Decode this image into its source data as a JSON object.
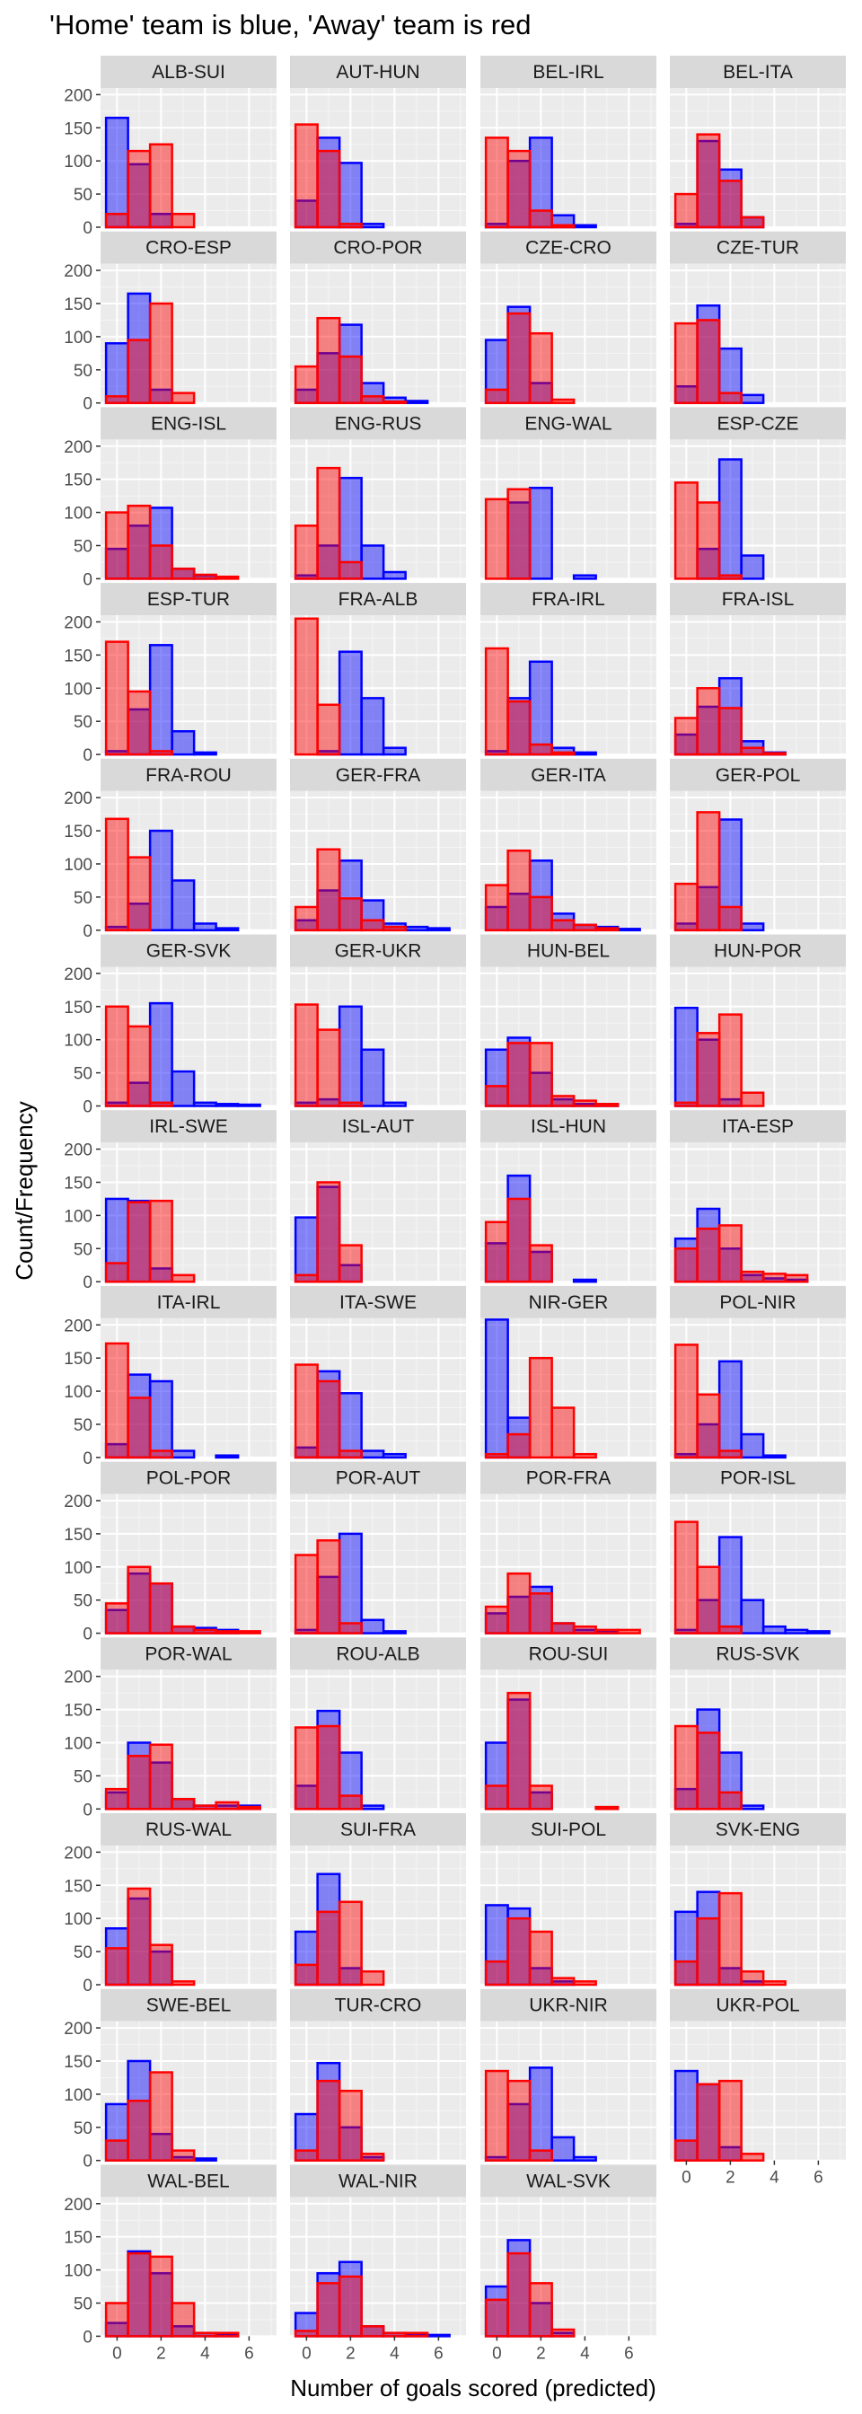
{
  "chart_data": {
    "type": "bar",
    "subtype": "faceted-overlapping-histogram",
    "title": "'Home' team is blue, 'Away' team is red",
    "xlabel": "Number of goals scored (predicted)",
    "ylabel": "Count/Frequency",
    "xlim": [
      -0.75,
      7.25
    ],
    "ylim": [
      0,
      210
    ],
    "x_ticks": [
      0,
      2,
      4,
      6
    ],
    "y_ticks": [
      0,
      50,
      100,
      150,
      200
    ],
    "bin_centers": [
      0,
      1,
      2,
      3,
      4,
      5,
      6
    ],
    "grid": true,
    "legend": "none",
    "colors": {
      "home_fill": "#8c8cf2",
      "home_stroke": "#0000ff",
      "away_fill": "#f28c8c",
      "away_stroke": "#ff0000",
      "overlap": "#9966cc",
      "panel": "#ebebeb",
      "strip": "#d9d9d9"
    },
    "series": [
      {
        "name": "Home",
        "color": "#0000ff"
      },
      {
        "name": "Away",
        "color": "#ff0000"
      }
    ],
    "facets": [
      {
        "label": "ALB-SUI",
        "home": [
          165,
          95,
          20,
          0,
          0,
          0,
          0
        ],
        "away": [
          20,
          115,
          125,
          20,
          0,
          0,
          0
        ]
      },
      {
        "label": "AUT-HUN",
        "home": [
          40,
          135,
          97,
          5,
          0,
          0,
          0
        ],
        "away": [
          155,
          115,
          5,
          0,
          0,
          0,
          0
        ]
      },
      {
        "label": "BEL-IRL",
        "home": [
          5,
          100,
          135,
          18,
          3,
          0,
          0
        ],
        "away": [
          135,
          115,
          25,
          3,
          0,
          0,
          0
        ]
      },
      {
        "label": "BEL-ITA",
        "home": [
          5,
          130,
          87,
          15,
          0,
          0,
          0
        ],
        "away": [
          50,
          140,
          70,
          15,
          0,
          0,
          0
        ]
      },
      {
        "label": "CRO-ESP",
        "home": [
          90,
          165,
          20,
          0,
          0,
          0,
          0
        ],
        "away": [
          10,
          95,
          150,
          15,
          0,
          0,
          0
        ]
      },
      {
        "label": "CRO-POR",
        "home": [
          20,
          75,
          118,
          30,
          8,
          3,
          0
        ],
        "away": [
          55,
          128,
          70,
          10,
          2,
          0,
          0
        ]
      },
      {
        "label": "CZE-CRO",
        "home": [
          95,
          145,
          30,
          0,
          0,
          0,
          0
        ],
        "away": [
          20,
          135,
          105,
          5,
          0,
          0,
          0
        ]
      },
      {
        "label": "CZE-TUR",
        "home": [
          25,
          147,
          82,
          12,
          0,
          0,
          0
        ],
        "away": [
          120,
          125,
          15,
          0,
          0,
          0,
          0
        ]
      },
      {
        "label": "ENG-ISL",
        "home": [
          45,
          80,
          107,
          15,
          5,
          0,
          0
        ],
        "away": [
          100,
          110,
          50,
          15,
          6,
          3,
          0
        ]
      },
      {
        "label": "ENG-RUS",
        "home": [
          5,
          50,
          152,
          50,
          10,
          0,
          0
        ],
        "away": [
          80,
          167,
          25,
          0,
          0,
          0,
          0
        ]
      },
      {
        "label": "ENG-WAL",
        "home": [
          0,
          115,
          137,
          0,
          5,
          0,
          0
        ],
        "away": [
          120,
          135,
          0,
          0,
          0,
          0,
          0
        ]
      },
      {
        "label": "ESP-CZE",
        "home": [
          0,
          45,
          180,
          35,
          0,
          0,
          0
        ],
        "away": [
          145,
          115,
          5,
          0,
          0,
          0,
          0
        ]
      },
      {
        "label": "ESP-TUR",
        "home": [
          5,
          68,
          165,
          35,
          3,
          0,
          0
        ],
        "away": [
          170,
          95,
          5,
          0,
          0,
          0,
          0
        ]
      },
      {
        "label": "FRA-ALB",
        "home": [
          0,
          5,
          155,
          85,
          10,
          0,
          0
        ],
        "away": [
          205,
          75,
          0,
          0,
          0,
          0,
          0
        ]
      },
      {
        "label": "FRA-IRL",
        "home": [
          5,
          85,
          140,
          10,
          3,
          0,
          0
        ],
        "away": [
          160,
          80,
          15,
          3,
          0,
          0,
          0
        ]
      },
      {
        "label": "FRA-ISL",
        "home": [
          30,
          72,
          115,
          20,
          3,
          0,
          0
        ],
        "away": [
          55,
          100,
          70,
          10,
          2,
          0,
          0
        ]
      },
      {
        "label": "FRA-ROU",
        "home": [
          5,
          40,
          150,
          75,
          10,
          3,
          0
        ],
        "away": [
          168,
          110,
          0,
          0,
          0,
          0,
          0
        ]
      },
      {
        "label": "GER-FRA",
        "home": [
          15,
          60,
          105,
          45,
          10,
          5,
          3
        ],
        "away": [
          35,
          122,
          48,
          15,
          5,
          0,
          0
        ]
      },
      {
        "label": "GER-ITA",
        "home": [
          35,
          55,
          105,
          25,
          8,
          5,
          2
        ],
        "away": [
          68,
          120,
          50,
          15,
          8,
          3,
          0
        ]
      },
      {
        "label": "GER-POL",
        "home": [
          10,
          65,
          167,
          10,
          0,
          0,
          0
        ],
        "away": [
          70,
          178,
          35,
          0,
          0,
          0,
          0
        ]
      },
      {
        "label": "GER-SVK",
        "home": [
          5,
          35,
          155,
          52,
          5,
          3,
          2
        ],
        "away": [
          150,
          120,
          5,
          0,
          0,
          0,
          0
        ]
      },
      {
        "label": "GER-UKR",
        "home": [
          5,
          10,
          150,
          85,
          5,
          0,
          0
        ],
        "away": [
          153,
          115,
          5,
          0,
          0,
          0,
          0
        ]
      },
      {
        "label": "HUN-BEL",
        "home": [
          85,
          103,
          50,
          10,
          3,
          3,
          0
        ],
        "away": [
          30,
          95,
          95,
          15,
          8,
          3,
          0
        ]
      },
      {
        "label": "HUN-POR",
        "home": [
          148,
          100,
          10,
          0,
          0,
          0,
          0
        ],
        "away": [
          5,
          110,
          138,
          20,
          0,
          0,
          0
        ]
      },
      {
        "label": "IRL-SWE",
        "home": [
          125,
          122,
          20,
          0,
          0,
          0,
          0
        ],
        "away": [
          28,
          120,
          122,
          10,
          0,
          0,
          0
        ]
      },
      {
        "label": "ISL-AUT",
        "home": [
          97,
          143,
          25,
          0,
          0,
          0,
          0
        ],
        "away": [
          10,
          150,
          55,
          0,
          0,
          0,
          0
        ]
      },
      {
        "label": "ISL-HUN",
        "home": [
          58,
          160,
          45,
          0,
          3,
          0,
          0
        ],
        "away": [
          90,
          125,
          55,
          0,
          0,
          0,
          0
        ]
      },
      {
        "label": "ITA-ESP",
        "home": [
          65,
          110,
          50,
          10,
          5,
          3,
          0
        ],
        "away": [
          50,
          80,
          85,
          15,
          12,
          10,
          0
        ]
      },
      {
        "label": "ITA-IRL",
        "home": [
          20,
          125,
          115,
          10,
          0,
          3,
          0
        ],
        "away": [
          172,
          90,
          10,
          0,
          0,
          0,
          0
        ]
      },
      {
        "label": "ITA-SWE",
        "home": [
          15,
          130,
          97,
          10,
          5,
          0,
          0
        ],
        "away": [
          140,
          115,
          10,
          0,
          0,
          0,
          0
        ]
      },
      {
        "label": "NIR-GER",
        "home": [
          208,
          60,
          0,
          0,
          0,
          0,
          0
        ],
        "away": [
          5,
          35,
          150,
          75,
          5,
          0,
          0
        ]
      },
      {
        "label": "POL-NIR",
        "home": [
          5,
          50,
          145,
          35,
          3,
          0,
          0
        ],
        "away": [
          170,
          95,
          10,
          0,
          0,
          0,
          0
        ]
      },
      {
        "label": "POL-POR",
        "home": [
          35,
          90,
          75,
          10,
          8,
          5,
          0
        ],
        "away": [
          45,
          100,
          75,
          10,
          5,
          3,
          3
        ]
      },
      {
        "label": "POR-AUT",
        "home": [
          5,
          85,
          150,
          20,
          3,
          0,
          0
        ],
        "away": [
          118,
          140,
          15,
          0,
          0,
          0,
          0
        ]
      },
      {
        "label": "POR-FRA",
        "home": [
          30,
          55,
          70,
          15,
          5,
          3,
          0
        ],
        "away": [
          40,
          90,
          60,
          15,
          10,
          5,
          5
        ]
      },
      {
        "label": "POR-ISL",
        "home": [
          5,
          50,
          145,
          50,
          10,
          5,
          3
        ],
        "away": [
          168,
          100,
          10,
          0,
          0,
          0,
          0
        ]
      },
      {
        "label": "POR-WAL",
        "home": [
          25,
          100,
          70,
          15,
          5,
          5,
          5
        ],
        "away": [
          30,
          80,
          97,
          15,
          5,
          10,
          3
        ]
      },
      {
        "label": "ROU-ALB",
        "home": [
          35,
          148,
          85,
          5,
          0,
          0,
          0
        ],
        "away": [
          123,
          125,
          20,
          0,
          0,
          0,
          0
        ]
      },
      {
        "label": "ROU-SUI",
        "home": [
          100,
          165,
          25,
          0,
          0,
          0,
          0
        ],
        "away": [
          35,
          175,
          35,
          0,
          0,
          3,
          0
        ]
      },
      {
        "label": "RUS-SVK",
        "home": [
          30,
          150,
          85,
          5,
          0,
          0,
          0
        ],
        "away": [
          125,
          115,
          25,
          0,
          0,
          0,
          0
        ]
      },
      {
        "label": "RUS-WAL",
        "home": [
          85,
          130,
          50,
          0,
          0,
          0,
          0
        ],
        "away": [
          55,
          145,
          60,
          5,
          0,
          0,
          0
        ]
      },
      {
        "label": "SUI-FRA",
        "home": [
          80,
          167,
          25,
          0,
          0,
          0,
          0
        ],
        "away": [
          30,
          110,
          125,
          20,
          0,
          0,
          0
        ]
      },
      {
        "label": "SUI-POL",
        "home": [
          120,
          115,
          25,
          5,
          0,
          0,
          0
        ],
        "away": [
          35,
          100,
          80,
          10,
          5,
          0,
          0
        ]
      },
      {
        "label": "SVK-ENG",
        "home": [
          110,
          140,
          25,
          5,
          0,
          0,
          0
        ],
        "away": [
          35,
          100,
          138,
          20,
          5,
          0,
          0
        ]
      },
      {
        "label": "SWE-BEL",
        "home": [
          85,
          150,
          40,
          5,
          3,
          0,
          0
        ],
        "away": [
          30,
          90,
          133,
          15,
          0,
          0,
          0
        ]
      },
      {
        "label": "TUR-CRO",
        "home": [
          70,
          147,
          50,
          5,
          0,
          0,
          0
        ],
        "away": [
          15,
          120,
          105,
          10,
          0,
          0,
          0
        ]
      },
      {
        "label": "UKR-NIR",
        "home": [
          5,
          85,
          140,
          35,
          5,
          0,
          0
        ],
        "away": [
          135,
          120,
          15,
          0,
          0,
          0,
          0
        ]
      },
      {
        "label": "UKR-POL",
        "home": [
          135,
          115,
          20,
          0,
          0,
          0,
          0
        ],
        "away": [
          30,
          115,
          120,
          10,
          0,
          0,
          0
        ]
      },
      {
        "label": "WAL-BEL",
        "home": [
          20,
          128,
          95,
          15,
          5,
          3,
          0
        ],
        "away": [
          50,
          125,
          120,
          50,
          5,
          5,
          0
        ]
      },
      {
        "label": "WAL-NIR",
        "home": [
          35,
          95,
          112,
          15,
          5,
          3,
          2
        ],
        "away": [
          8,
          80,
          90,
          15,
          5,
          5,
          0
        ]
      },
      {
        "label": "WAL-SVK",
        "home": [
          75,
          145,
          50,
          5,
          0,
          0,
          0
        ],
        "away": [
          55,
          125,
          80,
          10,
          0,
          0,
          0
        ]
      }
    ]
  }
}
